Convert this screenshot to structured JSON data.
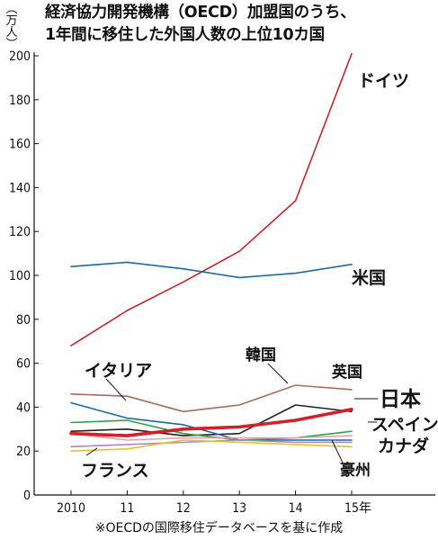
{
  "header": {
    "title_line1": "経済協力開発機構（OECD）加盟国のうち、",
    "title_line2": "1年間に移住した外国人数の上位10カ国",
    "unit": "（万人）"
  },
  "footnote": "※OECDの国際移住データベースを基に作成",
  "chart_data": {
    "type": "line",
    "title": "経済協力開発機構（OECD）加盟国のうち、1年間に移住した外国人数の上位10カ国",
    "ylabel": "（万人）",
    "xlabel": "",
    "categories": [
      "2010",
      "11",
      "12",
      "13",
      "14",
      "15年"
    ],
    "ylim": [
      0,
      200
    ],
    "yticks": [
      0,
      20,
      40,
      60,
      80,
      100,
      120,
      140,
      160,
      180,
      200
    ],
    "grid": false,
    "series": [
      {
        "name": "ドイツ",
        "color": "#c2262d",
        "values": [
          68,
          84,
          97,
          111,
          134,
          201
        ]
      },
      {
        "name": "米国",
        "color": "#1a6aa6",
        "values": [
          104,
          106,
          103,
          99,
          101,
          105
        ]
      },
      {
        "name": "英国",
        "color": "#a96b5a",
        "values": [
          46,
          45,
          38,
          41,
          50,
          48
        ]
      },
      {
        "name": "韓国",
        "color": "#222222",
        "values": [
          29,
          30,
          27,
          28,
          41,
          38
        ]
      },
      {
        "name": "日本",
        "color": "#d4202a",
        "values": [
          28,
          27,
          30,
          31,
          34,
          39
        ]
      },
      {
        "name": "イタリア",
        "color": "#1a6aa6",
        "values": [
          42,
          35,
          32,
          25,
          25,
          25
        ]
      },
      {
        "name": "スペイン",
        "color": "#2ea04c",
        "values": [
          33,
          34,
          28,
          25,
          26,
          29
        ]
      },
      {
        "name": "カナダ",
        "color": "#e8a0b0",
        "values": [
          28,
          25,
          26,
          26,
          26,
          27
        ]
      },
      {
        "name": "豪州",
        "color": "#a58bc8",
        "values": [
          22,
          23,
          24,
          25,
          24,
          24
        ]
      },
      {
        "name": "フランス",
        "color": "#e8c02c",
        "values": [
          20,
          21,
          25,
          24,
          23,
          22
        ]
      }
    ]
  }
}
